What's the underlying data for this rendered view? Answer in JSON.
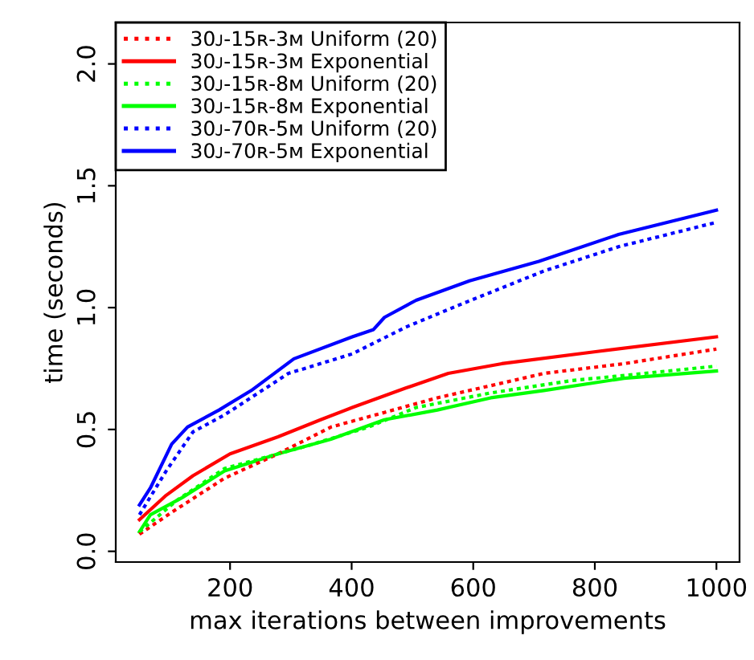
{
  "chart_data": {
    "type": "line",
    "xlabel": "max iterations between improvements",
    "ylabel": "time (seconds)",
    "xlim": [
      12,
      1038
    ],
    "ylim": [
      -0.044,
      2.17
    ],
    "xticks": [
      200,
      400,
      600,
      800,
      1000
    ],
    "yticks": [
      {
        "value": 0,
        "label": "0.0"
      },
      {
        "value": 0.5,
        "label": "0.5"
      },
      {
        "value": 1,
        "label": "1.0"
      },
      {
        "value": 1.5,
        "label": "1.5"
      },
      {
        "value": 2,
        "label": "2.0"
      }
    ],
    "grid": false,
    "legend": "top left",
    "marker": "none",
    "series": [
      {
        "name": "30ᴊ-15ʀ-3ᴍ Uniform (20)",
        "color": "#ff0000",
        "line_style": "dotted",
        "x": [
          51,
          104,
          191,
          279,
          366,
          454,
          541,
          629,
          716,
          848,
          1000
        ],
        "values": [
          0.07,
          0.16,
          0.3,
          0.4,
          0.51,
          0.57,
          0.63,
          0.68,
          0.73,
          0.77,
          0.83
        ]
      },
      {
        "name": "30ᴊ-15ʀ-3ᴍ Exponential",
        "color": "#ff0000",
        "line_style": "solid",
        "x": [
          51,
          95,
          139,
          200,
          279,
          349,
          401,
          489,
          559,
          647,
          804,
          1000
        ],
        "values": [
          0.13,
          0.23,
          0.31,
          0.4,
          0.47,
          0.54,
          0.59,
          0.67,
          0.73,
          0.77,
          0.82,
          0.88
        ]
      },
      {
        "name": "30ᴊ-15ʀ-8ᴍ Uniform (20)",
        "color": "#00ff00",
        "line_style": "dotted",
        "x": [
          51,
          113,
          191,
          323,
          428,
          506,
          629,
          760,
          1000
        ],
        "values": [
          0.08,
          0.21,
          0.34,
          0.43,
          0.51,
          0.59,
          0.65,
          0.7,
          0.76
        ]
      },
      {
        "name": "30ᴊ-15ʀ-8ᴍ Exponential",
        "color": "#00ff00",
        "line_style": "solid",
        "x": [
          51,
          69,
          121,
          191,
          279,
          366,
          454,
          541,
          629,
          716,
          848,
          1000
        ],
        "values": [
          0.08,
          0.15,
          0.22,
          0.33,
          0.4,
          0.46,
          0.54,
          0.58,
          0.63,
          0.66,
          0.71,
          0.74
        ]
      },
      {
        "name": "30ᴊ-70ʀ-5ᴍ Uniform (20)",
        "color": "#0000ff",
        "line_style": "dotted",
        "x": [
          51,
          95,
          139,
          191,
          296,
          401,
          489,
          576,
          716,
          839,
          1000
        ],
        "values": [
          0.15,
          0.33,
          0.49,
          0.56,
          0.73,
          0.81,
          0.92,
          1.01,
          1.15,
          1.25,
          1.35
        ]
      },
      {
        "name": "30ᴊ-70ʀ-5ᴍ Exponential",
        "color": "#0000ff",
        "line_style": "solid",
        "x": [
          51,
          69,
          104,
          130,
          182,
          235,
          305,
          401,
          436,
          454,
          506,
          594,
          708,
          839,
          1000
        ],
        "values": [
          0.19,
          0.26,
          0.44,
          0.51,
          0.58,
          0.66,
          0.79,
          0.88,
          0.91,
          0.96,
          1.03,
          1.11,
          1.19,
          1.3,
          1.4
        ]
      }
    ]
  }
}
